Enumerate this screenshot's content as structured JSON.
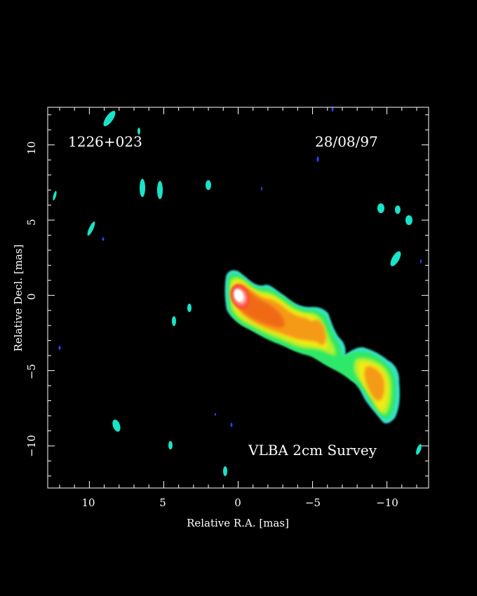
{
  "figure": {
    "source_label": "1226+023",
    "date_label": "28/08/97",
    "survey_label": "VLBA 2cm Survey",
    "xlabel": "Relative R.A. [mas]",
    "ylabel": "Relative Decl. [mas]",
    "xlim": [
      12.8,
      -12.8
    ],
    "ylim": [
      -12.8,
      12.5
    ],
    "x_ticks": [
      {
        "value": 10,
        "label": "10"
      },
      {
        "value": 5,
        "label": "5"
      },
      {
        "value": 0,
        "label": "0"
      },
      {
        "value": -5,
        "label": "−5"
      },
      {
        "value": -10,
        "label": "−10"
      }
    ],
    "y_ticks": [
      {
        "value": 10,
        "label": "10"
      },
      {
        "value": 5,
        "label": "5"
      },
      {
        "value": 0,
        "label": "0"
      },
      {
        "value": -5,
        "label": "−5"
      },
      {
        "value": -10,
        "label": "−10"
      }
    ],
    "colors": {
      "background": "#000000",
      "axes": "#ffffff",
      "noise_cyan": "#19e3c8",
      "noise_blue": "#2545ff",
      "low": "#35e0c9",
      "mid_green": "#2ee86b",
      "yellow_green": "#b7ef2a",
      "yellow": "#f2ea12",
      "orange": "#f59a12",
      "orange_red": "#f06a16",
      "red": "#ff3b2b",
      "peak": "#ffffff"
    }
  }
}
